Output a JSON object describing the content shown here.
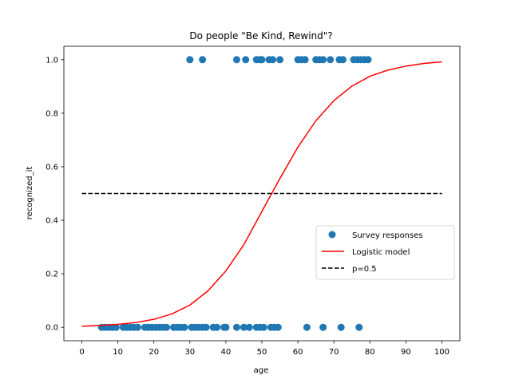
{
  "chart_data": {
    "type": "scatter",
    "title": "Do people \"Be Kind, Rewind\"?",
    "xlabel": "age",
    "ylabel": "recognized_it",
    "xlim": [
      -5,
      105
    ],
    "ylim": [
      -0.05,
      1.05
    ],
    "xticks": [
      0,
      10,
      20,
      30,
      40,
      50,
      60,
      70,
      80,
      90,
      100
    ],
    "yticks": [
      0.0,
      0.2,
      0.4,
      0.6,
      0.8,
      1.0
    ],
    "xtick_labels": [
      "0",
      "10",
      "20",
      "30",
      "40",
      "50",
      "60",
      "70",
      "80",
      "90",
      "100"
    ],
    "ytick_labels": [
      "0.0",
      "0.2",
      "0.4",
      "0.6",
      "0.8",
      "1.0"
    ],
    "grid": false,
    "legend_position": "center-right",
    "series": [
      {
        "name": "Survey responses",
        "kind": "scatter",
        "color": "#1f77b4",
        "points": [
          [
            30,
            1
          ],
          [
            33.5,
            1
          ],
          [
            43,
            1
          ],
          [
            45.5,
            1
          ],
          [
            48.5,
            1
          ],
          [
            49.5,
            1
          ],
          [
            50,
            1
          ],
          [
            52,
            1
          ],
          [
            53,
            1
          ],
          [
            55,
            1
          ],
          [
            60,
            1
          ],
          [
            61,
            1
          ],
          [
            62,
            1
          ],
          [
            65,
            1
          ],
          [
            66,
            1
          ],
          [
            67,
            1
          ],
          [
            69,
            1
          ],
          [
            71.5,
            1
          ],
          [
            72.5,
            1
          ],
          [
            75.5,
            1
          ],
          [
            76.5,
            1
          ],
          [
            77.5,
            1
          ],
          [
            78.5,
            1
          ],
          [
            79.5,
            1
          ],
          [
            5.5,
            0
          ],
          [
            6.5,
            0
          ],
          [
            7.5,
            0
          ],
          [
            8.5,
            0
          ],
          [
            9.5,
            0
          ],
          [
            11.5,
            0
          ],
          [
            12.5,
            0
          ],
          [
            13.5,
            0
          ],
          [
            14.5,
            0
          ],
          [
            15.5,
            0
          ],
          [
            17.5,
            0
          ],
          [
            18.5,
            0
          ],
          [
            19.5,
            0
          ],
          [
            20.5,
            0
          ],
          [
            21.5,
            0
          ],
          [
            22.5,
            0
          ],
          [
            23.5,
            0
          ],
          [
            25.5,
            0
          ],
          [
            26.5,
            0
          ],
          [
            27.5,
            0
          ],
          [
            28.5,
            0
          ],
          [
            30.5,
            0
          ],
          [
            31.5,
            0
          ],
          [
            32.5,
            0
          ],
          [
            33.5,
            0
          ],
          [
            34.5,
            0
          ],
          [
            36.5,
            0
          ],
          [
            37.5,
            0
          ],
          [
            39.5,
            0
          ],
          [
            40,
            0
          ],
          [
            43,
            0
          ],
          [
            45,
            0
          ],
          [
            46.5,
            0
          ],
          [
            48.5,
            0
          ],
          [
            49.5,
            0
          ],
          [
            50.5,
            0
          ],
          [
            52.5,
            0
          ],
          [
            53.5,
            0
          ],
          [
            54.5,
            0
          ],
          [
            62.5,
            0
          ],
          [
            67,
            0
          ],
          [
            72,
            0
          ],
          [
            77,
            0
          ]
        ]
      },
      {
        "name": "Logistic model",
        "kind": "line",
        "color": "#ff0000",
        "x": [
          0,
          5,
          10,
          15,
          20,
          25,
          30,
          35,
          40,
          45,
          50,
          55,
          60,
          65,
          70,
          75,
          80,
          85,
          90,
          95,
          100
        ],
        "y": [
          0.004,
          0.007,
          0.011,
          0.018,
          0.03,
          0.05,
          0.083,
          0.136,
          0.211,
          0.309,
          0.433,
          0.556,
          0.673,
          0.772,
          0.847,
          0.901,
          0.938,
          0.961,
          0.976,
          0.986,
          0.992
        ]
      },
      {
        "name": "p=0.5",
        "kind": "line",
        "color": "#000000",
        "dashed": true,
        "x": [
          0,
          100
        ],
        "y": [
          0.5,
          0.5
        ]
      }
    ]
  }
}
